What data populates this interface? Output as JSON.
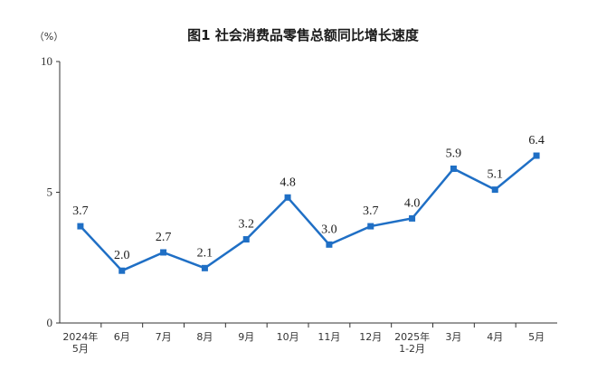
{
  "chart_data": {
    "type": "line",
    "title": "图1  社会消费品零售总额同比增长速度",
    "unit_label": "（%）",
    "categories": [
      [
        "2024年",
        "5月"
      ],
      [
        "6月"
      ],
      [
        "7月"
      ],
      [
        "8月"
      ],
      [
        "9月"
      ],
      [
        "10月"
      ],
      [
        "11月"
      ],
      [
        "12月"
      ],
      [
        "2025年",
        "1-2月"
      ],
      [
        "3月"
      ],
      [
        "4月"
      ],
      [
        "5月"
      ]
    ],
    "series": [
      {
        "values": [
          3.7,
          2.0,
          2.7,
          2.1,
          3.2,
          4.8,
          3.0,
          3.7,
          4.0,
          5.9,
          5.1,
          6.4
        ],
        "labels": [
          "3.7",
          "2.0",
          "2.7",
          "2.1",
          "3.2",
          "4.8",
          "3.0",
          "3.7",
          "4.0",
          "5.9",
          "5.1",
          "6.4"
        ],
        "color": "#1f6fc5"
      }
    ],
    "ylim": [
      0,
      10
    ],
    "yticks": [
      0,
      5,
      10
    ],
    "grid": false,
    "axis_color": "#333333"
  }
}
